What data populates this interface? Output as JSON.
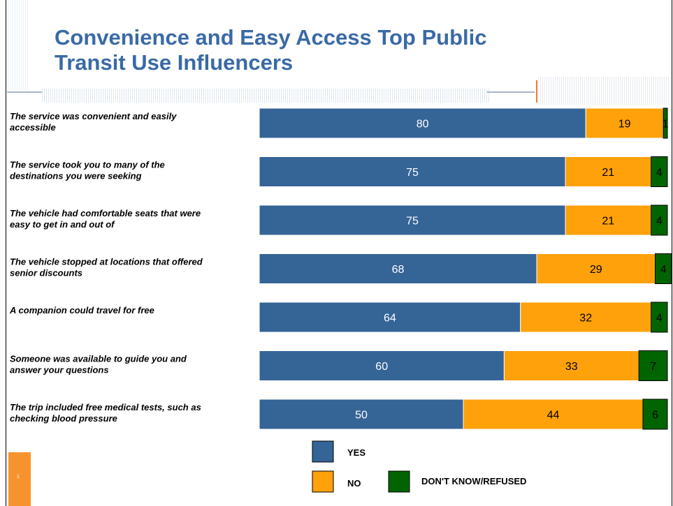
{
  "title_line1": "Convenience and Easy Access Top Public",
  "title_line2": "Transit Use Influencers",
  "page_number": "1",
  "colors": {
    "title": "#3a6aa6",
    "yes": "#356497",
    "no": "#ffa10a",
    "dont_know": "#006400"
  },
  "chart_data": {
    "type": "bar",
    "orientation": "horizontal",
    "stacked": true,
    "xlim": [
      0,
      100
    ],
    "grid": false,
    "legend_position": "bottom",
    "categories": [
      [
        "The service was convenient and easily",
        "accessible"
      ],
      [
        "The service took you to many of the",
        "destinations you were seeking"
      ],
      [
        "The vehicle had comfortable seats that were",
        "easy to get in and out of"
      ],
      [
        "The vehicle stopped at locations that offered",
        "senior discounts"
      ],
      [
        "A companion could travel for free"
      ],
      [
        "Someone was available to guide you and",
        "answer your questions"
      ],
      [
        "The trip included free medical tests, such as",
        "checking blood pressure"
      ]
    ],
    "series": [
      {
        "name": "YES",
        "values": [
          80,
          75,
          75,
          68,
          64,
          60,
          50
        ],
        "color": "#356497",
        "label_color": "#ffffff"
      },
      {
        "name": "NO",
        "values": [
          19,
          21,
          21,
          29,
          32,
          33,
          44
        ],
        "color": "#ffa10a",
        "label_color": "#000000"
      },
      {
        "name": "DON'T KNOW/REFUSED",
        "values": [
          1,
          4,
          4,
          4,
          4,
          7,
          6
        ],
        "color": "#006400",
        "label_color": "#000000"
      }
    ]
  }
}
